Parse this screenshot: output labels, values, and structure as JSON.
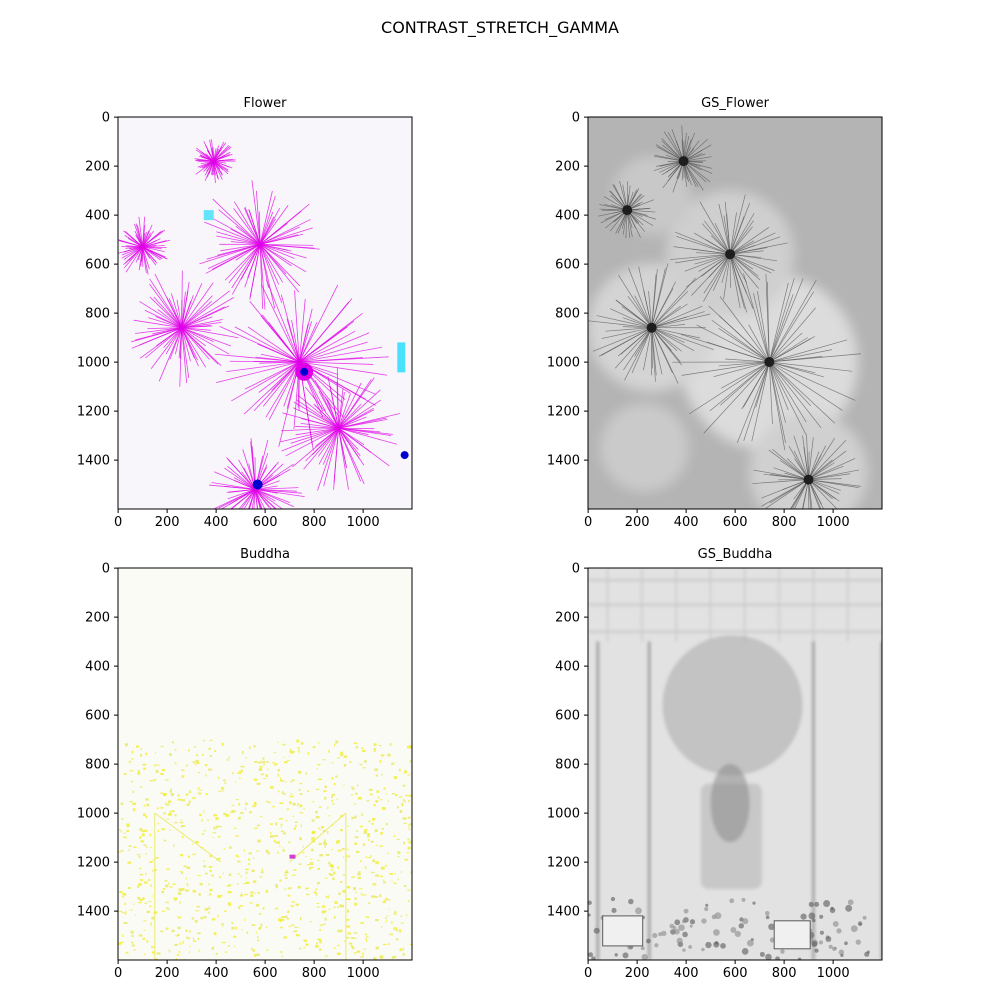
{
  "figure": {
    "suptitle": "CONTRAST_STRETCH_GAMMA"
  },
  "chart_data": [
    {
      "type": "heatmap",
      "title": "Flower",
      "xlabel": "",
      "ylabel": "",
      "xlim": [
        0,
        1200
      ],
      "ylim": [
        1600,
        0
      ],
      "xticks": [
        0,
        200,
        400,
        600,
        800,
        1000
      ],
      "yticks": [
        0,
        200,
        400,
        600,
        800,
        1000,
        1200,
        1400
      ],
      "content": "image",
      "colors": {
        "background": "#f8f6fa",
        "accent1": "#e000e8",
        "accent2": "#00d8ff",
        "accent3": "#0000cc"
      }
    },
    {
      "type": "heatmap",
      "title": "GS_Flower",
      "xlabel": "",
      "ylabel": "",
      "xlim": [
        0,
        1200
      ],
      "ylim": [
        1600,
        0
      ],
      "xticks": [
        0,
        200,
        400,
        600,
        800,
        1000
      ],
      "yticks": [
        0,
        200,
        400,
        600,
        800,
        1000,
        1200,
        1400
      ],
      "content": "image",
      "colors": {
        "background": "#b4b4b4",
        "accent1": "#e6e6e6",
        "accent2": "#555555",
        "accent3": "#1e1e1e"
      }
    },
    {
      "type": "heatmap",
      "title": "Buddha",
      "xlabel": "",
      "ylabel": "",
      "xlim": [
        0,
        1200
      ],
      "ylim": [
        1600,
        0
      ],
      "xticks": [
        0,
        200,
        400,
        600,
        800,
        1000
      ],
      "yticks": [
        0,
        200,
        400,
        600,
        800,
        1000,
        1200,
        1400
      ],
      "content": "image",
      "colors": {
        "background": "#fbfbf6",
        "accent1": "#f2ee30",
        "accent2": "#e8e85a",
        "accent3": "#d040d0"
      }
    },
    {
      "type": "heatmap",
      "title": "GS_Buddha",
      "xlabel": "",
      "ylabel": "",
      "xlim": [
        0,
        1200
      ],
      "ylim": [
        1600,
        0
      ],
      "xticks": [
        0,
        200,
        400,
        600,
        800,
        1000
      ],
      "yticks": [
        0,
        200,
        400,
        600,
        800,
        1000,
        1200,
        1400
      ],
      "content": "image",
      "colors": {
        "background": "#e2e2e2",
        "accent1": "#c8c8c8",
        "accent2": "#8a8a8a",
        "accent3": "#5a5a5a"
      }
    }
  ]
}
